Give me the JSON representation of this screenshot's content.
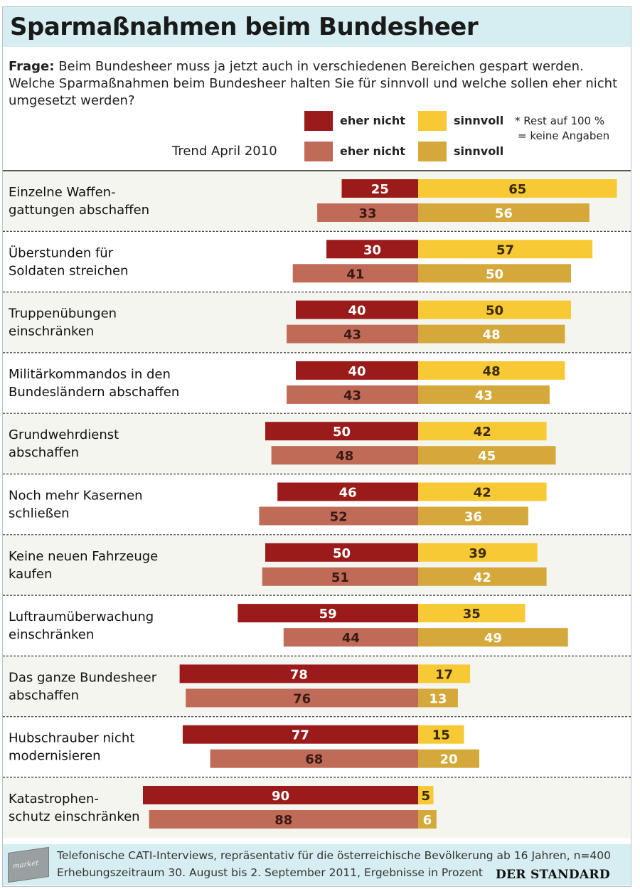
{
  "header": {
    "title": "Sparmaßnahmen beim Bundesheer",
    "question_label": "Frage:",
    "question_text": "Beim Bundesheer muss ja jetzt auch in verschiedenen Bereichen gespart werden. Welche Sparmaßnahmen beim Bundesheer halten Sie für sinnvoll und welche sollen eher nicht umgesetzt werden?"
  },
  "legend": {
    "current_no": "eher nicht",
    "current_yes": "sinnvoll",
    "trend_label": "Trend April 2010",
    "trend_no": "eher nicht",
    "trend_yes": "sinnvoll",
    "note_line1": "* Rest auf 100 %",
    "note_line2": "= keine Angaben"
  },
  "colors": {
    "current_no": "#9b1b1b",
    "current_yes": "#f6c935",
    "trend_no": "#c06a58",
    "trend_yes": "#d4a83a",
    "row_alt": "#f5f5ef"
  },
  "chart_data": {
    "type": "bar",
    "orientation": "horizontal-diverging",
    "unit": "Prozent",
    "categories": [
      [
        "Einzelne Waffen-",
        "gattungen abschaffen"
      ],
      [
        "Überstunden für",
        "Soldaten streichen"
      ],
      [
        "Truppenübungen",
        "einschränken"
      ],
      [
        "Militärkommandos in den",
        "Bundesländern abschaffen"
      ],
      [
        "Grundwehrdienst",
        "abschaffen"
      ],
      [
        "Noch mehr Kasernen",
        "schließen"
      ],
      [
        "Keine neuen Fahrzeuge",
        "kaufen"
      ],
      [
        "Luftraumüberwachung",
        "einschränken"
      ],
      [
        "Das ganze Bundesheer",
        "abschaffen"
      ],
      [
        "Hubschrauber nicht",
        "modernisieren"
      ],
      [
        "Katastrophen-",
        "schutz einschränken"
      ]
    ],
    "series": [
      {
        "name": "eher nicht",
        "values": [
          25,
          30,
          40,
          40,
          50,
          46,
          50,
          59,
          78,
          77,
          90
        ]
      },
      {
        "name": "sinnvoll",
        "values": [
          65,
          57,
          50,
          48,
          42,
          42,
          39,
          35,
          17,
          15,
          5
        ]
      },
      {
        "name": "Trend April 2010 eher nicht",
        "values": [
          33,
          41,
          43,
          43,
          48,
          52,
          51,
          44,
          76,
          68,
          88
        ]
      },
      {
        "name": "Trend April 2010 sinnvoll",
        "values": [
          56,
          50,
          48,
          43,
          45,
          36,
          42,
          49,
          13,
          20,
          6
        ]
      }
    ],
    "xlim": [
      -90,
      65
    ]
  },
  "footer": {
    "logo_text": "market",
    "line1": "Telefonische CATI-Interviews, repräsentativ für die österreichische Bevölkerung ab 16 Jahren, n=400",
    "line2": "Erhebungszeitraum 30. August bis 2. September 2011, Ergebnisse in Prozent",
    "brand": "DER STANDARD"
  }
}
